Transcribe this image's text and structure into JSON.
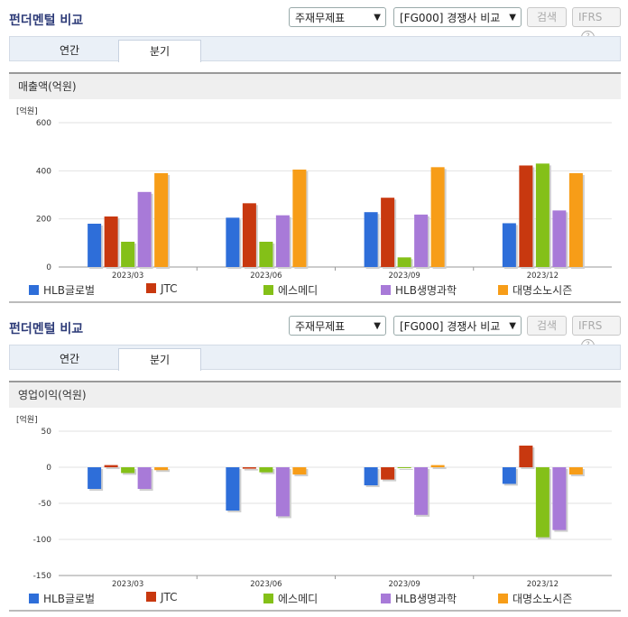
{
  "panels": [
    {
      "title": "펀더멘털 비교",
      "select1": "주재무제표",
      "select2": "[FG000] 경쟁사 비교",
      "search_label": "검색",
      "ifrs_label": "IFRS",
      "help_icon": "?",
      "tabs": [
        "연간",
        "분기"
      ],
      "active_tab": "분기",
      "section_title": "매출액(억원)",
      "unit_label": "[억원]"
    },
    {
      "title": "펀더멘털 비교",
      "select1": "주재무제표",
      "select2": "[FG000] 경쟁사 비교",
      "search_label": "검색",
      "ifrs_label": "IFRS",
      "help_icon": "?",
      "tabs": [
        "연간",
        "분기"
      ],
      "active_tab": "분기",
      "section_title": "영업이익(억원)",
      "unit_label": "[억원]"
    }
  ],
  "chart_data": [
    {
      "type": "bar",
      "categories": [
        "2023/03",
        "2023/06",
        "2023/09",
        "2023/12"
      ],
      "ylim": [
        0,
        600
      ],
      "yticks": [
        0,
        200,
        400,
        600
      ],
      "grid": true,
      "legend": "bottom",
      "series": [
        {
          "name": "HLB글로벌",
          "color": "#2e6ed9",
          "values": [
            180,
            205,
            228,
            182
          ]
        },
        {
          "name": "JTC",
          "color": "#c8380f",
          "values": [
            210,
            265,
            288,
            422
          ]
        },
        {
          "name": "에스메디",
          "color": "#84c018",
          "values": [
            105,
            105,
            40,
            430
          ]
        },
        {
          "name": "HLB생명과학",
          "color": "#a87ad8",
          "values": [
            312,
            215,
            218,
            235
          ]
        },
        {
          "name": "대명소노시즌",
          "color": "#f79d18",
          "values": [
            390,
            405,
            415,
            390
          ]
        }
      ]
    },
    {
      "type": "bar",
      "categories": [
        "2023/03",
        "2023/06",
        "2023/09",
        "2023/12"
      ],
      "ylim": [
        -150,
        50
      ],
      "yticks": [
        50,
        0,
        -50,
        -100,
        -150
      ],
      "grid": true,
      "legend": "bottom",
      "series": [
        {
          "name": "HLB글로벌",
          "color": "#2e6ed9",
          "values": [
            -30,
            -60,
            -25,
            -23
          ]
        },
        {
          "name": "JTC",
          "color": "#c8380f",
          "values": [
            3,
            -2,
            -17,
            30
          ]
        },
        {
          "name": "에스메디",
          "color": "#84c018",
          "values": [
            -8,
            -7,
            -1,
            -97
          ]
        },
        {
          "name": "HLB생명과학",
          "color": "#a87ad8",
          "values": [
            -30,
            -68,
            -66,
            -87
          ]
        },
        {
          "name": "대명소노시즌",
          "color": "#f79d18",
          "values": [
            -4,
            -10,
            3,
            -10
          ]
        }
      ]
    }
  ]
}
